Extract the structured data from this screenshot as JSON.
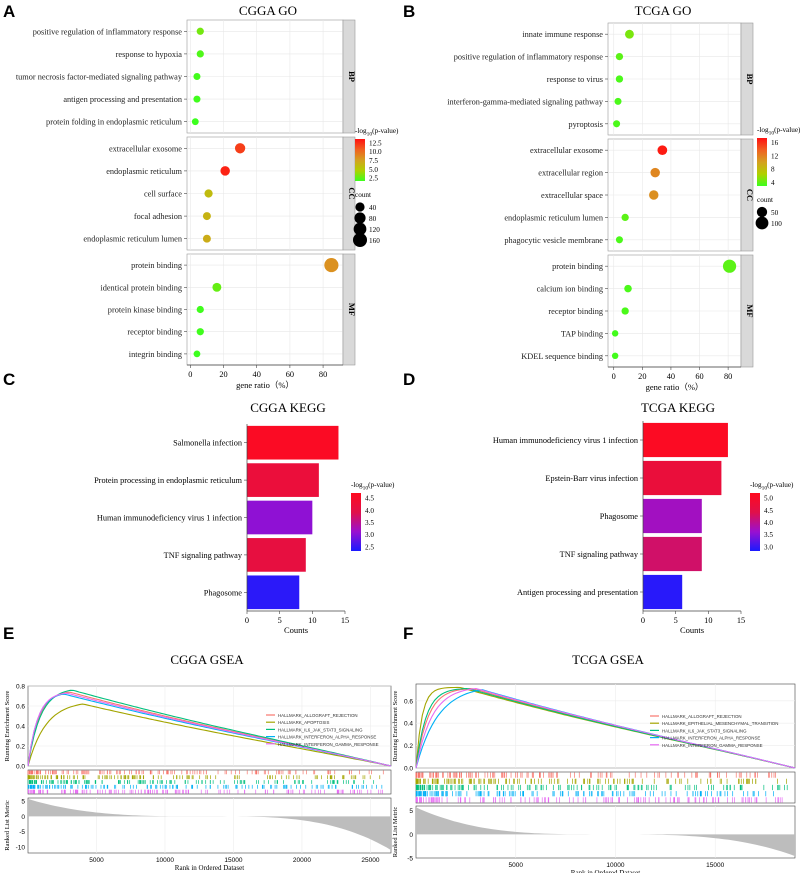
{
  "chart_data": [
    {
      "type": "scatter",
      "panel_letter": "A",
      "title": "CGGA GO",
      "xlabel": "gene ratio（%）",
      "xlim": [
        -2,
        92
      ],
      "xticks": [
        0,
        20,
        40,
        60,
        80
      ],
      "color_legend": {
        "title": "-log",
        "sub": "10",
        "title_tail": "(p-value)",
        "ticks": [
          "12.5",
          "10.0",
          "7.5",
          "5.0",
          "2.5"
        ],
        "range": [
          2.5,
          15
        ]
      },
      "size_legend": {
        "title": "count",
        "labels": [
          "40",
          "80",
          "120",
          "160"
        ]
      },
      "groups": [
        {
          "label": "BP",
          "terms": [
            "positive regulation of inflammatory response",
            "response to hypoxia",
            "tumor necrosis factor-mediated signaling pathway",
            "antigen processing and presentation",
            "protein folding in endoplasmic reticulum"
          ],
          "x": [
            6,
            6,
            4,
            4,
            3
          ],
          "color": [
            4,
            3,
            2.7,
            2.6,
            2.5
          ],
          "count": [
            14,
            14,
            12,
            12,
            10
          ]
        },
        {
          "label": "CC",
          "terms": [
            "extracellular exosome",
            "endoplasmic reticulum",
            "cell surface",
            "focal adhesion",
            "endoplasmic reticulum lumen"
          ],
          "x": [
            30,
            21,
            11,
            10,
            10
          ],
          "color": [
            13.2,
            14.3,
            7,
            7.5,
            8
          ],
          "count": [
            60,
            45,
            25,
            22,
            22
          ]
        },
        {
          "label": "MF",
          "terms": [
            "protein binding",
            "identical protein binding",
            "protein kinase binding",
            "receptor binding",
            "integrin binding"
          ],
          "x": [
            85,
            16,
            6,
            6,
            4
          ],
          "color": [
            9.5,
            3.6,
            2.6,
            2.6,
            2.5
          ],
          "count": [
            165,
            35,
            14,
            14,
            10
          ]
        }
      ]
    },
    {
      "type": "scatter",
      "panel_letter": "B",
      "title": "TCGA GO",
      "xlabel": "gene ratio（%）",
      "xlim": [
        -4,
        89
      ],
      "xticks": [
        0,
        20,
        40,
        60,
        80
      ],
      "color_legend": {
        "title": "-log",
        "sub": "10",
        "title_tail": "(p-value)",
        "ticks": [
          "16",
          "12",
          "8",
          "4"
        ],
        "range": [
          2,
          17
        ]
      },
      "size_legend": {
        "title": "count",
        "labels": [
          "50",
          "100"
        ]
      },
      "groups": [
        {
          "label": "BP",
          "terms": [
            "innate immune response",
            "positive regulation of inflammatory response",
            "response to virus",
            "interferon-gamma-mediated signaling pathway",
            "pyroptosis"
          ],
          "x": [
            11,
            4,
            4,
            3,
            2
          ],
          "color": [
            4,
            3,
            2.5,
            2.5,
            2.5
          ],
          "count": [
            28,
            12,
            12,
            10,
            10
          ]
        },
        {
          "label": "CC",
          "terms": [
            "extracellular exosome",
            "extracellular region",
            "extracellular space",
            "endoplasmic reticulum lumen",
            "phagocytic vesicle membrane"
          ],
          "x": [
            34,
            29,
            28,
            8,
            4
          ],
          "color": [
            16.5,
            11,
            10.5,
            3,
            2.5
          ],
          "count": [
            40,
            36,
            36,
            12,
            10
          ]
        },
        {
          "label": "MF",
          "terms": [
            "protein binding",
            "calcium ion binding",
            "receptor binding",
            "TAP binding",
            "KDEL sequence binding"
          ],
          "x": [
            81,
            10,
            8,
            1,
            1
          ],
          "color": [
            3,
            2.5,
            2.5,
            2.2,
            2.2
          ],
          "count": [
            110,
            14,
            12,
            6,
            6
          ]
        }
      ]
    },
    {
      "type": "bar",
      "panel_letter": "C",
      "title": "CGGA KEGG",
      "xlabel": "Counts",
      "xlim": [
        0,
        15
      ],
      "xticks": [
        0,
        5,
        10,
        15
      ],
      "categories": [
        "Salmonella infection",
        "Protein processing in endoplasmic reticulum",
        "Human immunodeficiency virus 1 infection",
        "TNF signaling pathway",
        "Phagosome"
      ],
      "values": [
        14,
        11,
        10,
        9,
        8
      ],
      "color_values": [
        4.5,
        4.1,
        3.0,
        4.0,
        2.4
      ],
      "color_legend": {
        "title": "-log",
        "sub": "10",
        "title_tail": "(p-value)",
        "ticks": [
          "4.5",
          "4.0",
          "3.5",
          "3.0",
          "2.5"
        ],
        "range": [
          2.3,
          4.6
        ]
      }
    },
    {
      "type": "bar",
      "panel_letter": "D",
      "title": "TCGA KEGG",
      "xlabel": "Counts",
      "xlim": [
        0,
        15
      ],
      "xticks": [
        0,
        5,
        10,
        15
      ],
      "categories": [
        "Human immunodeficiency virus 1 infection",
        "Epstein-Barr virus infection",
        "Phagosome",
        "TNF signaling pathway",
        "Antigen processing and presentation"
      ],
      "values": [
        13,
        12,
        9,
        9,
        6
      ],
      "color_values": [
        5.2,
        4.7,
        3.6,
        4.2,
        2.7
      ],
      "color_legend": {
        "title": "-log",
        "sub": "10",
        "title_tail": "(p-value)",
        "ticks": [
          "5.0",
          "4.5",
          "4.0",
          "3.5",
          "3.0"
        ],
        "range": [
          2.6,
          5.3
        ]
      }
    },
    {
      "type": "line",
      "panel_letter": "E",
      "title": "CGGA GSEA",
      "ylabel": "Running Enrichment Score",
      "ylabel2": "Ranked List Metric",
      "xlabel": "Rank in Ordered Dataset",
      "xlim": [
        0,
        26500
      ],
      "xticks": [
        5000,
        10000,
        15000,
        20000,
        25000
      ],
      "ylim": [
        0,
        0.8
      ],
      "yticks": [
        "0.0",
        "0.2",
        "0.4",
        "0.6",
        "0.8"
      ],
      "ylim2": [
        -12,
        6
      ],
      "yticks2": [
        "5",
        "0",
        "-5",
        "-10"
      ],
      "series": [
        {
          "name": "HALLMARK_ALLOGRAFT_REJECTION",
          "color": "#f8766d",
          "peak_x": 3000,
          "peak": 0.74,
          "rise": 800
        },
        {
          "name": "HALLMARK_APOPTOSIS",
          "color": "#a3a500",
          "peak_x": 4000,
          "peak": 0.62,
          "rise": 1300
        },
        {
          "name": "HALLMARK_IL6_JAK_STAT3_SIGNALING",
          "color": "#00bf7d",
          "peak_x": 3200,
          "peak": 0.76,
          "rise": 900
        },
        {
          "name": "HALLMARK_INTERFERON_ALPHA_RESPONSE",
          "color": "#00b0f6",
          "peak_x": 2600,
          "peak": 0.72,
          "rise": 700
        },
        {
          "name": "HALLMARK_INTERFERON_GAMMA_RESPONSE",
          "color": "#e76bf3",
          "peak_x": 2800,
          "peak": 0.73,
          "rise": 700
        }
      ]
    },
    {
      "type": "line",
      "panel_letter": "F",
      "title": "TCGA GSEA",
      "ylabel": "Running Enrichment Score",
      "ylabel2": "Ranked List Metric",
      "xlabel": "Rank in Ordered Dataset",
      "xlim": [
        0,
        19000
      ],
      "xticks": [
        5000,
        10000,
        15000
      ],
      "ylim": [
        0,
        0.75
      ],
      "yticks": [
        "0.0",
        "0.2",
        "0.4",
        "0.6"
      ],
      "ylim2": [
        -5,
        6
      ],
      "yticks2": [
        "5",
        "0",
        "-5"
      ],
      "series": [
        {
          "name": "HALLMARK_ALLOGRAFT_REJECTION",
          "color": "#f8766d",
          "peak_x": 2800,
          "peak": 0.71,
          "rise": 600
        },
        {
          "name": "HALLMARK_EPITHELIAL_MESENCHYMAL_TRANSITION",
          "color": "#a3a500",
          "peak_x": 2200,
          "peak": 0.72,
          "rise": 300
        },
        {
          "name": "HALLMARK_IL6_JAK_STAT3_SIGNALING",
          "color": "#00bf7d",
          "peak_x": 2600,
          "peak": 0.71,
          "rise": 500
        },
        {
          "name": "HALLMARK_INTERFERON_ALPHA_RESPONSE",
          "color": "#00b0f6",
          "peak_x": 3300,
          "peak": 0.7,
          "rise": 1100
        },
        {
          "name": "HALLMARK_INTERFERON_GAMMA_RESPONSE",
          "color": "#e76bf3",
          "peak_x": 3000,
          "peak": 0.71,
          "rise": 800
        }
      ]
    }
  ]
}
